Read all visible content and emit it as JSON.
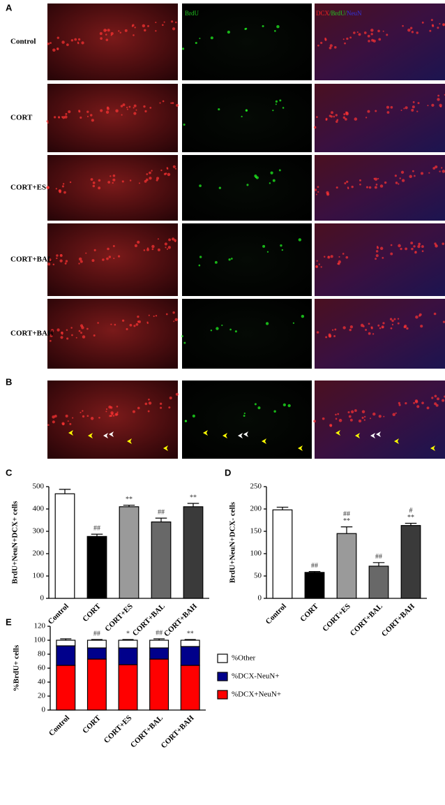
{
  "panels": {
    "A": {
      "label": "A",
      "rows": [
        "Control",
        "CORT",
        "CORT+ES",
        "CORT+BAL",
        "CORT+BAH"
      ],
      "brdu_label": "BrdU",
      "merge_label": [
        "DCX",
        "/BrdU/",
        "NeuN"
      ]
    },
    "B": {
      "label": "B"
    }
  },
  "chart_data": [
    {
      "type": "bar",
      "panel": "C",
      "ylabel": "BrdU+NeuN+DCX+ cells",
      "categories": [
        "Control",
        "CORT",
        "CORT+ES",
        "CORT+BAL",
        "CORT+BAH"
      ],
      "values": [
        468,
        277,
        410,
        342,
        410
      ],
      "errors": [
        20,
        10,
        7,
        17,
        15
      ],
      "colors": [
        "#ffffff",
        "#000000",
        "#9a9a9a",
        "#686868",
        "#3a3a3a"
      ],
      "annotations": [
        null,
        [
          "##"
        ],
        [
          "**"
        ],
        [
          "##"
        ],
        [
          "**"
        ]
      ],
      "ylim": [
        0,
        500
      ],
      "yticks": [
        0,
        100,
        200,
        300,
        400,
        500
      ]
    },
    {
      "type": "bar",
      "panel": "D",
      "ylabel": "BrdU+NeuN+DCX- cells",
      "categories": [
        "Control",
        "CORT",
        "CORT+ES",
        "CORT+BAL",
        "CORT+BAH"
      ],
      "values": [
        198,
        58,
        145,
        72,
        163
      ],
      "errors": [
        6,
        2,
        15,
        8,
        5
      ],
      "colors": [
        "#ffffff",
        "#000000",
        "#9a9a9a",
        "#686868",
        "#3a3a3a"
      ],
      "annotations": [
        null,
        [
          "##"
        ],
        [
          "##",
          "**"
        ],
        [
          "##"
        ],
        [
          "#",
          "**"
        ]
      ],
      "ylim": [
        0,
        250
      ],
      "yticks": [
        0,
        50,
        100,
        150,
        200,
        250
      ]
    },
    {
      "type": "stacked_bar",
      "panel": "E",
      "ylabel": "%BrdU+ cells",
      "categories": [
        "Control",
        "CORT",
        "CORT+ES",
        "CORT+BAL",
        "CORT+BAH"
      ],
      "series": [
        {
          "name": "%DCX+NeuN+",
          "color": "#ff0000",
          "values": [
            64,
            73,
            65,
            73,
            64
          ],
          "errors": [
            1,
            1,
            1,
            1,
            1
          ]
        },
        {
          "name": "%DCX-NeuN+",
          "color": "#00008b",
          "values": [
            28,
            16,
            24,
            16,
            27
          ],
          "errors": [
            2,
            1,
            1,
            1,
            1
          ]
        },
        {
          "name": "%Other",
          "color": "#ffffff",
          "values": [
            8,
            11,
            11,
            11,
            9
          ],
          "errors": [
            2,
            1,
            1,
            2,
            1
          ]
        }
      ],
      "annotations": [
        null,
        [
          "##"
        ],
        [
          "*"
        ],
        [
          "##"
        ],
        [
          "**"
        ]
      ],
      "ylim": [
        0,
        120
      ],
      "yticks": [
        0,
        20,
        40,
        60,
        80,
        100,
        120
      ],
      "legend": "right"
    }
  ]
}
